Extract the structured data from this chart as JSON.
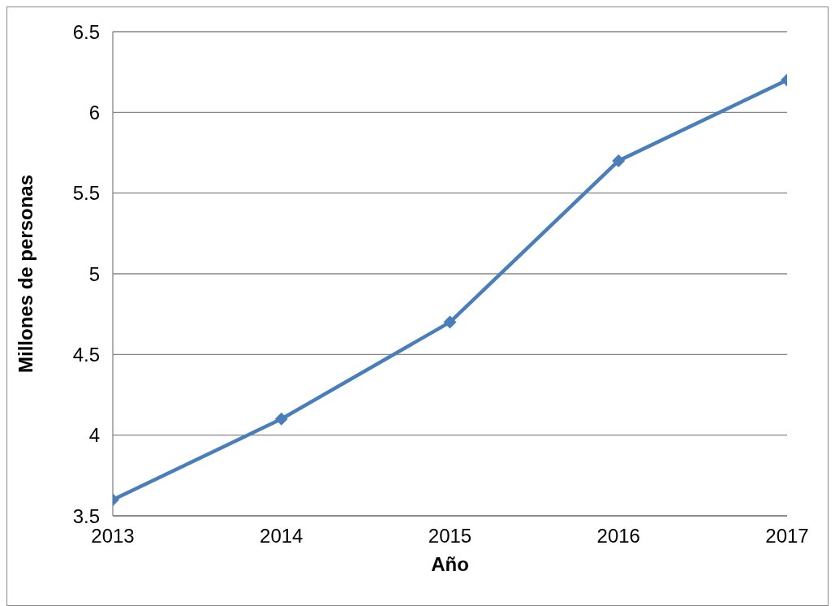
{
  "chart_data": {
    "type": "line",
    "xlabel": "Año",
    "ylabel": "Millones de personas",
    "x": [
      2013,
      2014,
      2015,
      2016,
      2017
    ],
    "series": [
      {
        "color": "#4a7ebb",
        "values": [
          3.6,
          4.1,
          4.7,
          5.7,
          6.2
        ]
      }
    ],
    "xlim": [
      2013,
      2017
    ],
    "xticks": [
      2013,
      2014,
      2015,
      2016,
      2017
    ],
    "ylim": [
      3.5,
      6.5
    ],
    "yticks": [
      3.5,
      4,
      4.5,
      5,
      5.5,
      6,
      6.5
    ],
    "grid": "y",
    "legend": false,
    "marker": "diamond",
    "line_style": "solid"
  }
}
